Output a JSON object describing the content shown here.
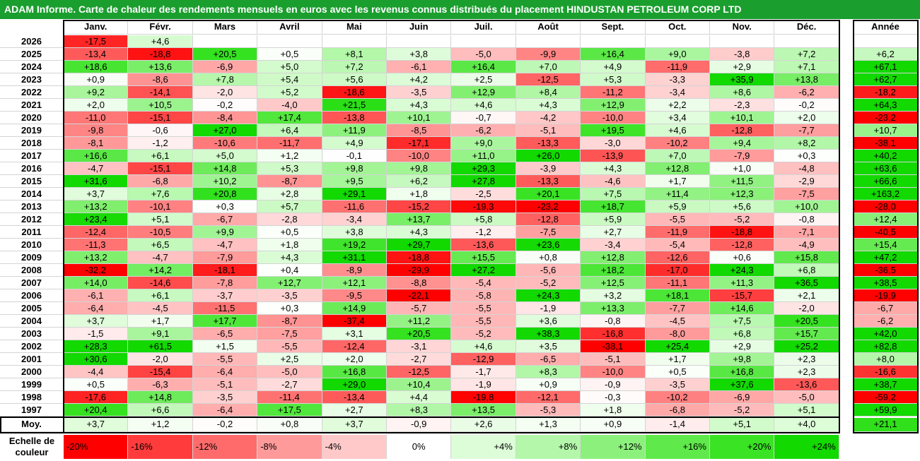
{
  "title": "ADAM Informe. Carte de chaleur des rendements mensuels en euros avec les revenus connus distribués du placement HINDUSTAN PETROLEUM CORP LTD",
  "chart_data": {
    "type": "heatmap",
    "months": [
      "Janv.",
      "Févr.",
      "Mars",
      "Avril",
      "Mai",
      "Juin",
      "Juil.",
      "Août",
      "Sept.",
      "Oct.",
      "Nov.",
      "Déc."
    ],
    "year_header": "Année",
    "rows": [
      {
        "year": "2026",
        "months": [
          "-17,5",
          "+4,6",
          "",
          "",
          "",
          "",
          "",
          "",
          "",
          "",
          "",
          ""
        ],
        "annual": ""
      },
      {
        "year": "2025",
        "months": [
          "-13,4",
          "-18,8",
          "+20,5",
          "+0,5",
          "+8,1",
          "+3,8",
          "-5,0",
          "-9,9",
          "+16,4",
          "+9,0",
          "-3,8",
          "+7,2"
        ],
        "annual": "+6,2"
      },
      {
        "year": "2024",
        "months": [
          "+18,6",
          "+13,6",
          "-6,9",
          "+5,0",
          "+7,2",
          "-6,1",
          "+16,4",
          "+7,0",
          "+4,9",
          "-11,9",
          "+2,9",
          "+7,1"
        ],
        "annual": "+67,1"
      },
      {
        "year": "2023",
        "months": [
          "+0,9",
          "-8,6",
          "+7,8",
          "+5,4",
          "+5,6",
          "+4,2",
          "+2,5",
          "-12,5",
          "+5,3",
          "-3,3",
          "+35,9",
          "+13,8"
        ],
        "annual": "+62,7"
      },
      {
        "year": "2022",
        "months": [
          "+9,2",
          "-14,1",
          "-2,0",
          "+5,2",
          "-18,6",
          "-3,5",
          "+12,9",
          "+8,4",
          "-11,2",
          "-3,4",
          "+8,6",
          "-6,2"
        ],
        "annual": "-18,2"
      },
      {
        "year": "2021",
        "months": [
          "+2,0",
          "+10,5",
          "-0,2",
          "-4,0",
          "+21,5",
          "+4,3",
          "+4,6",
          "+4,3",
          "+12,9",
          "+2,2",
          "-2,3",
          "-0,2"
        ],
        "annual": "+64,3"
      },
      {
        "year": "2020",
        "months": [
          "-11,0",
          "-15,1",
          "-8,4",
          "+17,4",
          "-13,8",
          "+10,1",
          "-0,7",
          "-4,2",
          "-10,0",
          "+3,4",
          "+10,1",
          "+2,0"
        ],
        "annual": "-23,2"
      },
      {
        "year": "2019",
        "months": [
          "-9,8",
          "-0,6",
          "+27,0",
          "+6,4",
          "+11,9",
          "-8,5",
          "-6,2",
          "-5,1",
          "+19,5",
          "+4,6",
          "-12,8",
          "-7,7"
        ],
        "annual": "+10,7"
      },
      {
        "year": "2018",
        "months": [
          "-8,1",
          "-1,2",
          "-10,6",
          "-11,7",
          "+4,9",
          "-17,1",
          "+9,0",
          "-13,3",
          "-3,0",
          "-10,2",
          "+9,4",
          "+8,2"
        ],
        "annual": "-38,1"
      },
      {
        "year": "2017",
        "months": [
          "+16,6",
          "+6,1",
          "+5,0",
          "+1,2",
          "-0,1",
          "-10,0",
          "+11,0",
          "+26,0",
          "-13,9",
          "+7,0",
          "-7,9",
          "+0,3"
        ],
        "annual": "+40,2"
      },
      {
        "year": "2016",
        "months": [
          "-4,7",
          "-15,1",
          "+14,8",
          "+5,3",
          "+9,8",
          "+9,8",
          "+29,3",
          "-3,9",
          "+4,3",
          "+12,8",
          "+1,0",
          "-4,8"
        ],
        "annual": "+63,6"
      },
      {
        "year": "2015",
        "months": [
          "+31,6",
          "-6,8",
          "+10,2",
          "-8,7",
          "+9,5",
          "+6,2",
          "+27,8",
          "-13,3",
          "-4,6",
          "+1,7",
          "+11,5",
          "-2,9"
        ],
        "annual": "+66,6"
      },
      {
        "year": "2014",
        "months": [
          "+3,7",
          "+7,6",
          "+20,8",
          "+2,8",
          "+29,1",
          "+1,8",
          "-2,5",
          "+20,1",
          "+7,5",
          "+11,4",
          "+12,3",
          "-7,5"
        ],
        "annual": "+163,2"
      },
      {
        "year": "2013",
        "months": [
          "+13,2",
          "-10,1",
          "+0,3",
          "+5,7",
          "-11,6",
          "-15,2",
          "-19,3",
          "-23,2",
          "+18,7",
          "+5,9",
          "+5,6",
          "+10,0"
        ],
        "annual": "-28,0"
      },
      {
        "year": "2012",
        "months": [
          "+23,4",
          "+5,1",
          "-6,7",
          "-2,8",
          "-3,4",
          "+13,7",
          "+5,8",
          "-12,8",
          "+5,9",
          "-5,5",
          "-5,2",
          "-0,8"
        ],
        "annual": "+12,4"
      },
      {
        "year": "2011",
        "months": [
          "-12,4",
          "-10,5",
          "+9,9",
          "+0,5",
          "+3,8",
          "+4,3",
          "-1,2",
          "-7,5",
          "+2,7",
          "-11,9",
          "-18,8",
          "-7,1"
        ],
        "annual": "-40,5"
      },
      {
        "year": "2010",
        "months": [
          "-11,3",
          "+6,5",
          "-4,7",
          "+1,8",
          "+19,2",
          "+29,7",
          "-13,6",
          "+23,6",
          "-3,4",
          "-5,4",
          "-12,8",
          "-4,9"
        ],
        "annual": "+15,4"
      },
      {
        "year": "2009",
        "months": [
          "+13,2",
          "-4,7",
          "-7,9",
          "+4,3",
          "+31,1",
          "-18,8",
          "+15,5",
          "+0,8",
          "+12,8",
          "-12,6",
          "+0,6",
          "+15,8"
        ],
        "annual": "+47,2"
      },
      {
        "year": "2008",
        "months": [
          "-32,2",
          "+14,2",
          "-18,1",
          "+0,4",
          "-8,9",
          "-29,9",
          "+27,2",
          "-5,6",
          "+18,2",
          "-17,0",
          "+24,3",
          "+6,8"
        ],
        "annual": "-36,5"
      },
      {
        "year": "2007",
        "months": [
          "+14,0",
          "-14,6",
          "-7,8",
          "+12,7",
          "+12,1",
          "-8,8",
          "-5,4",
          "-5,2",
          "+12,5",
          "-11,1",
          "+11,3",
          "+36,5"
        ],
        "annual": "+38,5"
      },
      {
        "year": "2006",
        "months": [
          "-6,1",
          "+6,1",
          "-3,7",
          "-3,5",
          "-9,5",
          "-22,1",
          "-5,8",
          "+24,3",
          "+3,2",
          "+18,1",
          "-15,7",
          "+2,1"
        ],
        "annual": "-19,9"
      },
      {
        "year": "2005",
        "months": [
          "-6,4",
          "-4,5",
          "-11,5",
          "+0,3",
          "+14,9",
          "-5,7",
          "-5,5",
          "-1,9",
          "+13,3",
          "-7,7",
          "+14,6",
          "-2,0"
        ],
        "annual": "-6,7"
      },
      {
        "year": "2004",
        "months": [
          "+3,7",
          "+1,7",
          "+17,7",
          "-8,7",
          "-37,4",
          "+11,2",
          "-5,5",
          "+3,6",
          "-0,8",
          "-4,5",
          "+7,5",
          "+20,5"
        ],
        "annual": "-6,2"
      },
      {
        "year": "2003",
        "months": [
          "-1,5",
          "+9,1",
          "-6,5",
          "-7,5",
          "+3,1",
          "+20,5",
          "-5,2",
          "+38,3",
          "-16,8",
          "-8,0",
          "+6,8",
          "+15,7"
        ],
        "annual": "+42,0"
      },
      {
        "year": "2002",
        "months": [
          "+28,3",
          "+61,5",
          "+1,5",
          "-5,5",
          "-12,4",
          "-3,1",
          "+4,6",
          "+3,5",
          "-38,1",
          "+25,4",
          "+2,9",
          "+25,2"
        ],
        "annual": "+82,8"
      },
      {
        "year": "2001",
        "months": [
          "+30,6",
          "-2,0",
          "-5,5",
          "+2,5",
          "+2,0",
          "-2,7",
          "-12,9",
          "-6,5",
          "-5,1",
          "+1,7",
          "+9,8",
          "+2,3"
        ],
        "annual": "+8,0"
      },
      {
        "year": "2000",
        "months": [
          "-4,4",
          "-15,4",
          "-6,4",
          "-5,0",
          "+16,8",
          "-12,5",
          "-1,7",
          "+8,3",
          "-10,0",
          "+0,5",
          "+16,8",
          "+2,3"
        ],
        "annual": "-16,6"
      },
      {
        "year": "1999",
        "months": [
          "+0,5",
          "-6,3",
          "-5,1",
          "-2,7",
          "+29,0",
          "+10,4",
          "-1,9",
          "+0,9",
          "-0,9",
          "-3,5",
          "+37,6",
          "-13,6"
        ],
        "annual": "+38,7"
      },
      {
        "year": "1998",
        "months": [
          "-17,6",
          "+14,8",
          "-3,5",
          "-11,4",
          "-13,4",
          "+4,4",
          "-19,8",
          "-12,1",
          "-0,3",
          "-10,2",
          "-6,9",
          "-5,0"
        ],
        "annual": "-59,2"
      },
      {
        "year": "1997",
        "months": [
          "+20,4",
          "+6,6",
          "-6,4",
          "+17,5",
          "+2,7",
          "+8,3",
          "+13,5",
          "-5,3",
          "+1,8",
          "-6,8",
          "-5,2",
          "+5,1"
        ],
        "annual": "+59,9"
      }
    ],
    "average": {
      "label": "Moy.",
      "months": [
        "+3,7",
        "+1,2",
        "-0,2",
        "+0,8",
        "+3,7",
        "-0,9",
        "+2,6",
        "+1,3",
        "+0,9",
        "-1,4",
        "+5,1",
        "+4,0"
      ],
      "annual": "+21,1"
    },
    "color_scale": {
      "label": "Echelle de couleur",
      "stops": [
        {
          "label": "-20%",
          "value": -20,
          "color": "#ff0000"
        },
        {
          "label": "-16%",
          "value": -16,
          "color": "#ff3b3b"
        },
        {
          "label": "-12%",
          "value": -12,
          "color": "#ff6b6b"
        },
        {
          "label": "-8%",
          "value": -8,
          "color": "#ff9a9a"
        },
        {
          "label": "-4%",
          "value": -4,
          "color": "#ffc9c9"
        },
        {
          "label": "0%",
          "value": 0,
          "color": "#ffffff"
        },
        {
          "label": "+4%",
          "value": 4,
          "color": "#ddfcd8"
        },
        {
          "label": "+8%",
          "value": 8,
          "color": "#b4f7aa"
        },
        {
          "label": "+12%",
          "value": 12,
          "color": "#8cf17c"
        },
        {
          "label": "+16%",
          "value": 16,
          "color": "#5fe94b"
        },
        {
          "label": "+20%",
          "value": 20,
          "color": "#3ae324"
        },
        {
          "label": "+24%",
          "value": 24,
          "color": "#12d900"
        }
      ]
    }
  }
}
